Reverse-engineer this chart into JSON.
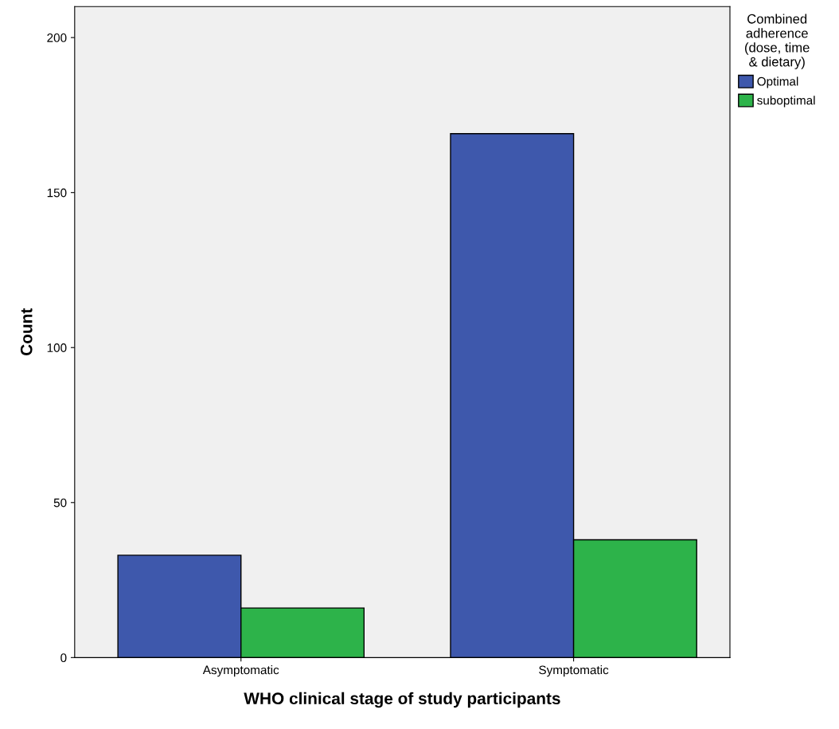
{
  "chart_data": {
    "type": "bar",
    "xlabel": "WHO clinical stage of study participants",
    "ylabel": "Count",
    "legend_title": "Combined\nadherence\n(dose, time\n& dietary)",
    "categories": [
      "Asymptomatic",
      "Symptomatic"
    ],
    "series": [
      {
        "name": "Optimal",
        "color": "#3e58ac",
        "values": [
          33,
          169
        ]
      },
      {
        "name": "suboptimal",
        "color": "#2db34a",
        "values": [
          16,
          38
        ]
      }
    ],
    "ylim": [
      0,
      210
    ],
    "yticks": [
      0,
      50,
      100,
      150,
      200
    ],
    "grid": false,
    "legend": "right"
  }
}
